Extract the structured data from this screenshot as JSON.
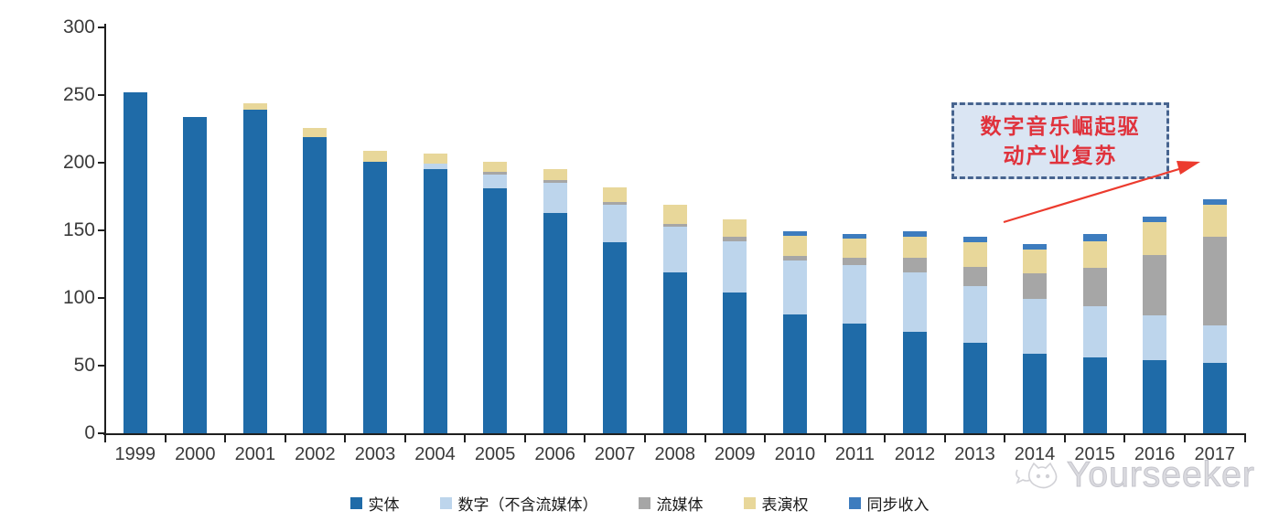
{
  "chart_data": {
    "type": "bar",
    "stacked": true,
    "title": "",
    "xlabel": "",
    "ylabel": "",
    "ylim": [
      0,
      300
    ],
    "yticks": [
      0,
      50,
      100,
      150,
      200,
      250,
      300
    ],
    "grid": false,
    "legend_position": "bottom",
    "categories": [
      "1999",
      "2000",
      "2001",
      "2002",
      "2003",
      "2004",
      "2005",
      "2006",
      "2007",
      "2008",
      "2009",
      "2010",
      "2011",
      "2012",
      "2013",
      "2014",
      "2015",
      "2016",
      "2017"
    ],
    "series": [
      {
        "key": "physical",
        "name": "实体",
        "color": "#1f6ba8",
        "values": [
          252,
          234,
          239,
          219,
          201,
          195,
          181,
          163,
          141,
          119,
          104,
          88,
          81,
          75,
          67,
          59,
          56,
          54,
          52
        ]
      },
      {
        "key": "digital-ex-streaming",
        "name": "数字（不含流媒体）",
        "color": "#bdd5ec",
        "values": [
          0,
          0,
          0,
          0,
          0,
          4,
          10,
          22,
          28,
          34,
          38,
          40,
          43,
          44,
          42,
          40,
          38,
          33,
          28
        ]
      },
      {
        "key": "streaming",
        "name": "流媒体",
        "color": "#a6a6a6",
        "values": [
          0,
          0,
          0,
          0,
          0,
          0,
          2,
          2,
          2,
          2,
          3,
          3,
          6,
          11,
          14,
          19,
          28,
          45,
          65
        ]
      },
      {
        "key": "performance-rights",
        "name": "表演权",
        "color": "#e8d79a",
        "values": [
          0,
          0,
          5,
          7,
          8,
          8,
          8,
          8,
          11,
          14,
          13,
          15,
          14,
          15,
          18,
          18,
          20,
          24,
          24
        ]
      },
      {
        "key": "sync-revenue",
        "name": "同步收入",
        "color": "#3d7cbe",
        "values": [
          0,
          0,
          0,
          0,
          0,
          0,
          0,
          0,
          0,
          0,
          0,
          3,
          3,
          4,
          4,
          4,
          5,
          4,
          4
        ]
      }
    ]
  },
  "annotation": {
    "lines": [
      "数字音乐崛起驱",
      "动产业复苏"
    ],
    "text_color": "#e0323c",
    "fill_color": "#dae5f3",
    "border_color": "#47648f",
    "arrow_color": "#ec3b2e"
  },
  "axis": {
    "line_color": "#1f1f1f",
    "label_color": "#3a3a3a"
  },
  "watermark": {
    "text": "Yourseeker",
    "color": "#c9c9cf"
  }
}
